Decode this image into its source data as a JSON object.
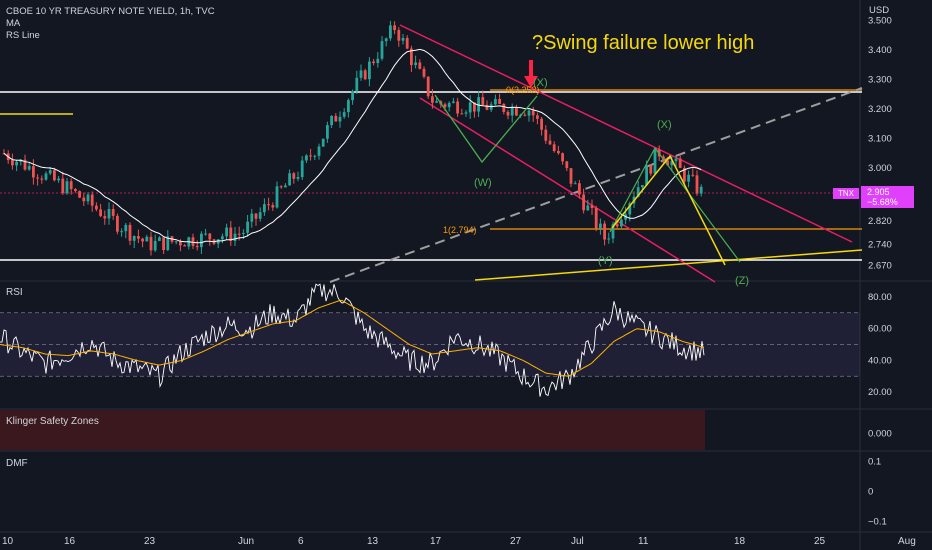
{
  "header": {
    "symbol_line": "CBOE 10 YR TREASURY NOTE YIELD, 1h, TVC",
    "indicator1": "MA",
    "indicator2": "RS Line"
  },
  "currency_label": "USD",
  "annotation": "?Swing failure lower high",
  "price_tag": {
    "symbol": "TNX",
    "value": "2.905",
    "change": "−5.68%"
  },
  "colors": {
    "background": "#131722",
    "up": "#26a69a",
    "down": "#ef5350",
    "channel": "#e91e63",
    "annotation_yellow": "#f5d90a",
    "orange_level": "#ff9800",
    "wave_green": "#4caf50",
    "rsi": "#ffffff",
    "rsi_ma": "#ffb300",
    "rsi_band": "#7e57c2",
    "accent": "#e040fb"
  },
  "chart_data": [
    {
      "type": "candlestick",
      "title": "CBOE 10 YR TREASURY NOTE YIELD, 1h, TVC",
      "ylabel": "USD",
      "ylim": [
        2.62,
        3.57
      ],
      "y_ticks": [
        "3.500",
        "3.400",
        "3.300",
        "3.200",
        "3.100",
        "3.000",
        "2.910",
        "2.820",
        "2.740",
        "2.670"
      ],
      "x_ticks": [
        "10",
        "16",
        "23",
        "Jun",
        "6",
        "13",
        "17",
        "27",
        "Jul",
        "11",
        "18",
        "25",
        "Aug"
      ],
      "price_path": [
        {
          "x": "10",
          "y": 3.05
        },
        {
          "x": "16",
          "y": 2.93
        },
        {
          "x": "23",
          "y": 2.74
        },
        {
          "x": "Jun",
          "y": 2.78
        },
        {
          "x": "6",
          "y": 3.0
        },
        {
          "x": "13",
          "y": 3.48
        },
        {
          "x": "17",
          "y": 3.22
        },
        {
          "x": "27",
          "y": 3.2
        },
        {
          "x": "Jul",
          "y": 2.76
        },
        {
          "x": "11",
          "y": 3.06
        },
        {
          "x": "14",
          "y": 2.905
        }
      ],
      "last_price": 2.905,
      "annotations": [
        {
          "text": "(X)",
          "price": 3.29
        },
        {
          "text": "(W)",
          "price": 2.93
        },
        {
          "text": "(X)",
          "price": 3.12
        },
        {
          "text": "(Y)",
          "price": 2.69
        },
        {
          "text": "(Z)",
          "price": 2.64
        },
        {
          "text": "1(2.794)",
          "price": 2.794
        },
        {
          "text": "0(3.253)",
          "price": 3.253
        }
      ],
      "levels": [
        3.253,
        2.794,
        3.24,
        2.69
      ]
    },
    {
      "type": "line",
      "title": "RSI",
      "ylim": [
        10,
        90
      ],
      "y_ticks": [
        "80.00",
        "60.00",
        "40.00",
        "20.00"
      ],
      "bands": [
        30,
        70
      ],
      "series": [
        {
          "values": [
            55,
            45,
            38,
            44,
            52,
            40,
            35,
            30,
            45,
            55,
            62,
            60,
            70,
            65,
            85,
            82,
            60,
            50,
            40,
            38,
            55,
            50,
            42,
            30,
            22,
            30,
            50,
            72,
            62,
            55,
            48,
            45
          ]
        },
        {
          "values": [
            50,
            48,
            44,
            43,
            46,
            44,
            40,
            37,
            40,
            46,
            53,
            58,
            63,
            65,
            73,
            78,
            70,
            60,
            50,
            44,
            46,
            48,
            46,
            40,
            32,
            30,
            38,
            52,
            60,
            58,
            52,
            48
          ]
        }
      ]
    },
    {
      "type": "bar",
      "title": "Klinger Safety Zones",
      "y_ticks": [
        "0.000"
      ]
    },
    {
      "type": "line",
      "title": "DMF",
      "y_ticks": [
        "0.1",
        "0",
        "−0.1"
      ]
    }
  ]
}
